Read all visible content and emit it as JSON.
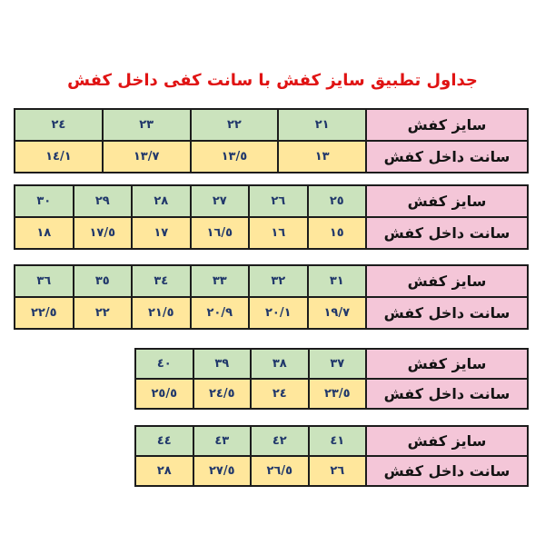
{
  "title": "جداول تطبیق سایز کفش با سانت کفی داخل کفش",
  "row_headers": {
    "size": "سایز کفش",
    "insole": "سانت داخل کفش"
  },
  "colors": {
    "title_red": "#e01313",
    "size_cell_green": "#cbe3bd",
    "insole_cell_yellow": "#ffe79c",
    "header_cell_pink": "#f4c6d8",
    "number_text_navy": "#21386b",
    "border_black": "#1c1c1c",
    "background": "#ffffff"
  },
  "tables": [
    {
      "sizes": [
        "٢١",
        "٢٢",
        "٢٣",
        "٢٤"
      ],
      "insole_cm": [
        "١٣",
        "١٣/٥",
        "١٣/٧",
        "١٤/١"
      ]
    },
    {
      "sizes": [
        "٢٥",
        "٢٦",
        "٢٧",
        "٢٨",
        "٢٩",
        "٣٠"
      ],
      "insole_cm": [
        "١٥",
        "١٦",
        "١٦/٥",
        "١٧",
        "١٧/٥",
        "١٨"
      ]
    },
    {
      "sizes": [
        "٣١",
        "٣٢",
        "٣٣",
        "٣٤",
        "٣٥",
        "٣٦"
      ],
      "insole_cm": [
        "١٩/٧",
        "٢٠/١",
        "٢٠/٩",
        "٢١/٥",
        "٢٢",
        "٢٢/٥"
      ]
    },
    {
      "sizes": [
        "٣٧",
        "٣٨",
        "٣٩",
        "٤٠"
      ],
      "insole_cm": [
        "٢٣/٥",
        "٢٤",
        "٢٤/٥",
        "٢٥/٥"
      ]
    },
    {
      "sizes": [
        "٤١",
        "٤٢",
        "٤٣",
        "٤٤"
      ],
      "insole_cm": [
        "٢٦",
        "٢٦/٥",
        "٢٧/٥",
        "٢٨"
      ]
    }
  ]
}
